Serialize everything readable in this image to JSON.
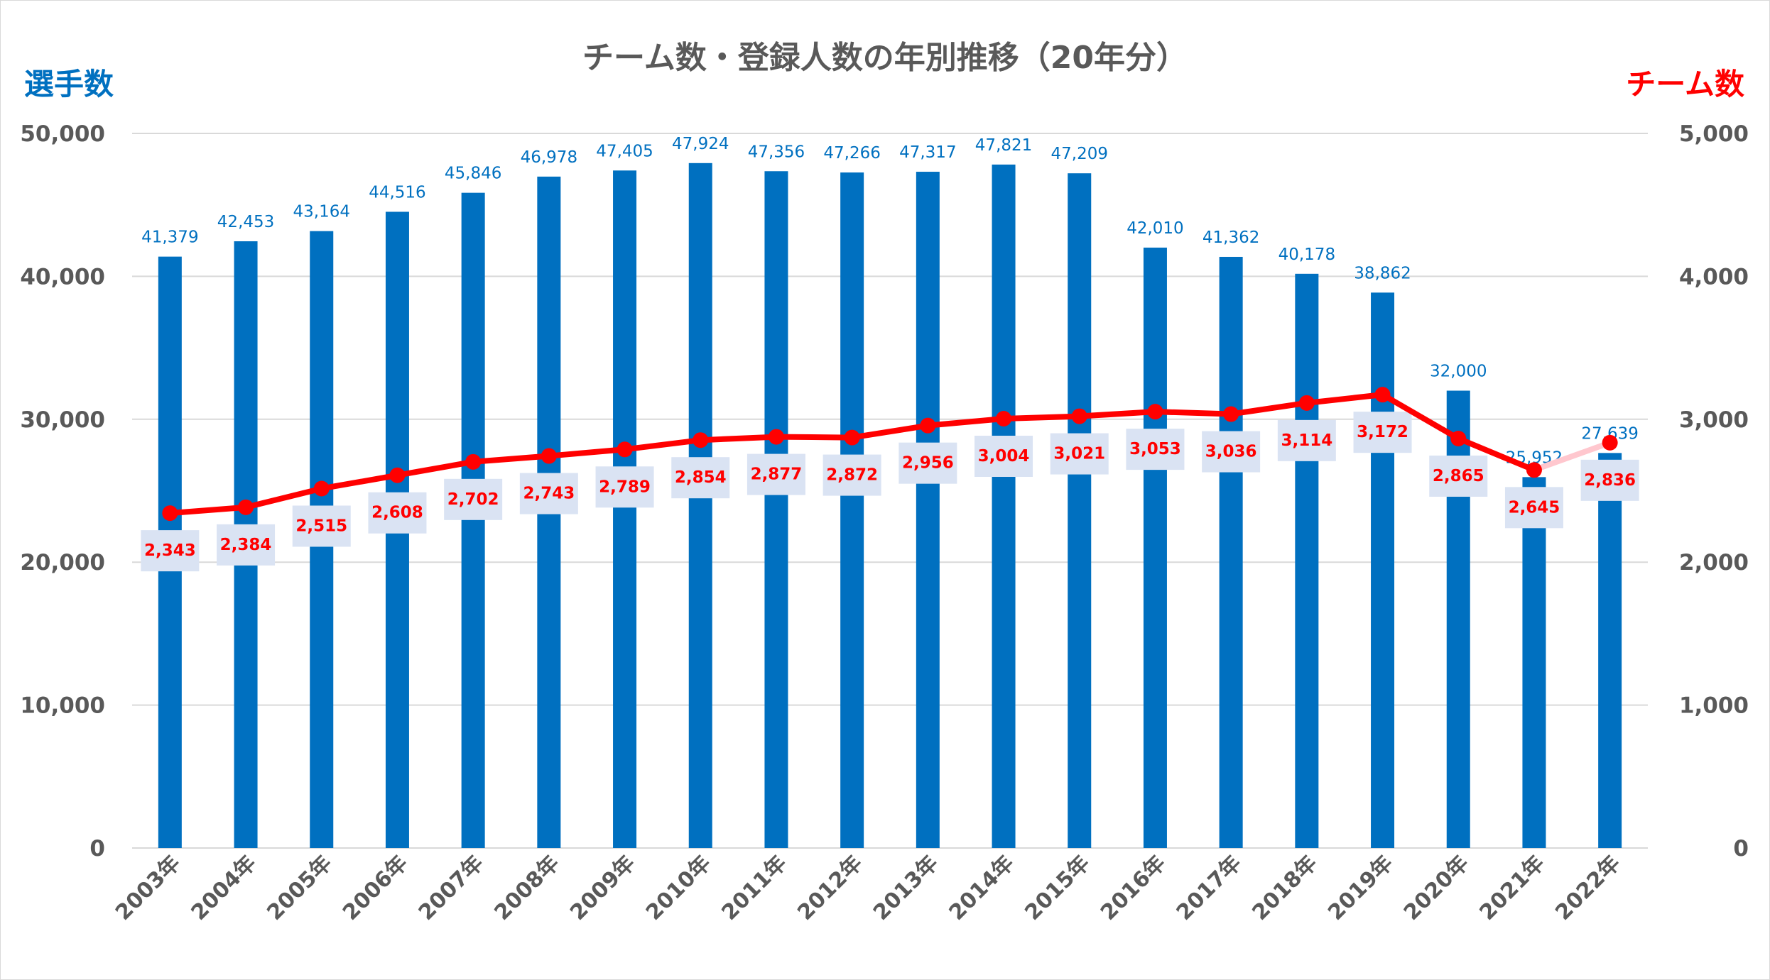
{
  "chart_data": {
    "type": "bar+line",
    "title": "チーム数・登録人数の年別推移（20年分）",
    "categories": [
      "2003年",
      "2004年",
      "2005年",
      "2006年",
      "2007年",
      "2008年",
      "2009年",
      "2010年",
      "2011年",
      "2012年",
      "2013年",
      "2014年",
      "2015年",
      "2016年",
      "2017年",
      "2018年",
      "2019年",
      "2020年",
      "2021年",
      "2022年"
    ],
    "series": [
      {
        "name": "選手数",
        "type": "bar",
        "axis": "left",
        "color": "#0070c0",
        "values": [
          41379,
          42453,
          43164,
          44516,
          45846,
          46978,
          47405,
          47924,
          47356,
          47266,
          47317,
          47821,
          47209,
          42010,
          41362,
          40178,
          38862,
          32000,
          25952,
          27639
        ],
        "labels": [
          "41,379",
          "42,453",
          "43,164",
          "44,516",
          "45,846",
          "46,978",
          "47,405",
          "47,924",
          "47,356",
          "47,266",
          "47,317",
          "47,821",
          "47,209",
          "42,010",
          "41,362",
          "40,178",
          "38,862",
          "32,000",
          "25,952",
          "27,639"
        ]
      },
      {
        "name": "チーム数",
        "type": "line",
        "axis": "right",
        "color": "#ff0000",
        "values": [
          2343,
          2384,
          2515,
          2608,
          2702,
          2743,
          2789,
          2854,
          2877,
          2872,
          2956,
          3004,
          3021,
          3053,
          3036,
          3114,
          3172,
          2865,
          2645,
          2836
        ],
        "labels": [
          "2,343",
          "2,384",
          "2,515",
          "2,608",
          "2,702",
          "2,743",
          "2,789",
          "2,854",
          "2,877",
          "2,872",
          "2,956",
          "3,004",
          "3,021",
          "3,053",
          "3,036",
          "3,114",
          "3,172",
          "2,865",
          "2,645",
          "2,836"
        ]
      }
    ],
    "y_left": {
      "label": "選手数",
      "range": [
        0,
        50000
      ],
      "ticks": [
        0,
        10000,
        20000,
        30000,
        40000,
        50000
      ],
      "tick_labels": [
        "0",
        "10,000",
        "20,000",
        "30,000",
        "40,000",
        "50,000"
      ]
    },
    "y_right": {
      "label": "チーム数",
      "range": [
        0,
        5000
      ],
      "ticks": [
        0,
        1000,
        2000,
        3000,
        4000,
        5000
      ],
      "tick_labels": [
        "0",
        "1,000",
        "2,000",
        "3,000",
        "4,000",
        "5,000"
      ]
    },
    "grid": true,
    "legend": "none",
    "label_background": "#dae3f3",
    "highlight_segment_color": "#ffc7ce"
  }
}
